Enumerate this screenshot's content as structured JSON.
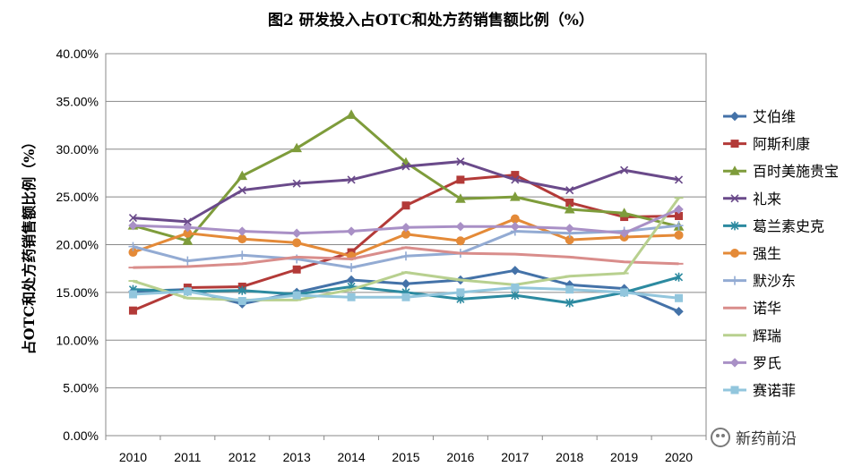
{
  "chart_data": {
    "type": "line",
    "title": "图2 研发投入占OTC和处方药销售额比例（%）",
    "xlabel": "",
    "ylabel": "占OTC和处方药销售额比例（%）",
    "ylim": [
      0,
      40
    ],
    "yticks": [
      "0.00%",
      "5.00%",
      "10.00%",
      "15.00%",
      "20.00%",
      "25.00%",
      "30.00%",
      "35.00%",
      "40.00%"
    ],
    "categories": [
      "2010",
      "2011",
      "2012",
      "2013",
      "2014",
      "2015",
      "2016",
      "2017",
      "2018",
      "2019",
      "2020"
    ],
    "legend_position": "right",
    "grid": true,
    "series": [
      {
        "name": "艾伯维",
        "color": "#4472a8",
        "marker": "diamond",
        "values": [
          15.1,
          15.3,
          13.8,
          15.0,
          16.3,
          15.9,
          16.3,
          17.3,
          15.8,
          15.4,
          13.0
        ]
      },
      {
        "name": "阿斯利康",
        "color": "#b33a38",
        "marker": "square",
        "values": [
          13.1,
          15.5,
          15.6,
          17.4,
          19.2,
          24.1,
          26.8,
          27.3,
          24.4,
          22.9,
          23.0
        ]
      },
      {
        "name": "百时美施贵宝",
        "color": "#7e9c3b",
        "marker": "triangle",
        "values": [
          22.0,
          20.4,
          27.2,
          30.1,
          33.6,
          28.6,
          24.8,
          25.0,
          23.7,
          23.3,
          21.9
        ]
      },
      {
        "name": "礼来",
        "color": "#6a4a8a",
        "marker": "x",
        "values": [
          22.8,
          22.4,
          25.7,
          26.4,
          26.8,
          28.2,
          28.7,
          26.8,
          25.7,
          27.8,
          26.8
        ]
      },
      {
        "name": "葛兰素史克",
        "color": "#2c8aa0",
        "marker": "star",
        "values": [
          15.3,
          15.1,
          15.2,
          14.8,
          15.6,
          15.0,
          14.3,
          14.7,
          13.9,
          15.0,
          16.6
        ]
      },
      {
        "name": "强生",
        "color": "#e48a38",
        "marker": "circle",
        "values": [
          19.2,
          21.2,
          20.6,
          20.2,
          18.8,
          21.1,
          20.4,
          22.7,
          20.5,
          20.8,
          21.0
        ]
      },
      {
        "name": "默沙东",
        "color": "#93abd3",
        "marker": "plus",
        "values": [
          19.8,
          18.3,
          18.9,
          18.5,
          17.6,
          18.8,
          19.1,
          21.4,
          21.2,
          21.4,
          22.0
        ]
      },
      {
        "name": "诺华",
        "color": "#d98d8b",
        "marker": "dash",
        "values": [
          17.6,
          17.7,
          18.0,
          18.7,
          18.5,
          19.7,
          19.1,
          19.0,
          18.7,
          18.2,
          18.0
        ]
      },
      {
        "name": "辉瑞",
        "color": "#b8d08f",
        "marker": "dash",
        "values": [
          16.2,
          14.4,
          14.2,
          14.2,
          15.3,
          17.1,
          16.3,
          15.8,
          16.7,
          17.0,
          24.9
        ]
      },
      {
        "name": "罗氏",
        "color": "#a990c6",
        "marker": "diamond",
        "values": [
          22.0,
          21.8,
          21.4,
          21.2,
          21.4,
          21.8,
          21.9,
          21.9,
          21.7,
          21.2,
          23.7
        ]
      },
      {
        "name": "赛诺菲",
        "color": "#92c6dd",
        "marker": "square",
        "values": [
          14.8,
          15.1,
          14.1,
          14.7,
          14.5,
          14.5,
          15.0,
          15.5,
          15.3,
          15.0,
          14.4
        ]
      }
    ]
  },
  "watermark": {
    "text": "新药前沿",
    "icon": "wechat-icon"
  }
}
